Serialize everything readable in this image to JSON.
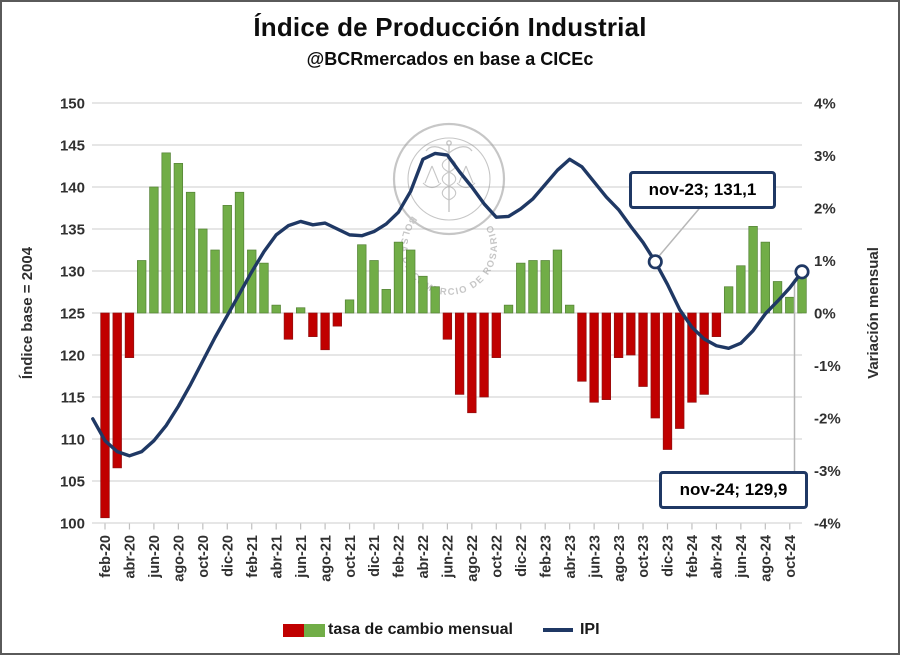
{
  "header": {
    "title": "Índice de Producción Industrial",
    "subtitle": "@BCRmercados en base a CICEc"
  },
  "chart_data": {
    "type": "combo-bar-line",
    "title": "Índice de Producción Industrial",
    "subtitle": "@BCRmercados en base a CICEc",
    "watermark": "BOLSA DE COMERCIO DE ROSARIO",
    "left_axis": {
      "label": "Índice base = 2004",
      "min": 100,
      "max": 150,
      "step": 5,
      "tick_labels": [
        "150",
        "145",
        "140",
        "135",
        "130",
        "125",
        "120",
        "115",
        "110",
        "105",
        "100"
      ]
    },
    "right_axis": {
      "label": "Variación mensual",
      "min_pct": -4,
      "max_pct": 4,
      "step_pct": 1,
      "tick_labels": [
        "4%",
        "3%",
        "2%",
        "1%",
        "0%",
        "-1%",
        "-2%",
        "-3%",
        "-4%"
      ]
    },
    "x_tick_labels": [
      "feb-20",
      "abr-20",
      "jun-20",
      "ago-20",
      "oct-20",
      "dic-20",
      "feb-21",
      "abr-21",
      "jun-21",
      "ago-21",
      "oct-21",
      "dic-21",
      "feb-22",
      "abr-22",
      "jun-22",
      "ago-22",
      "oct-22",
      "dic-22",
      "feb-23",
      "abr-23",
      "jun-23",
      "ago-23",
      "oct-23",
      "dic-23",
      "feb-24",
      "abr-24",
      "jun-24",
      "ago-24",
      "oct-24"
    ],
    "bar_months": [
      "feb-20",
      "mar-20",
      "abr-20",
      "may-20",
      "jun-20",
      "jul-20",
      "ago-20",
      "sep-20",
      "oct-20",
      "nov-20",
      "dic-20",
      "ene-21",
      "feb-21",
      "mar-21",
      "abr-21",
      "may-21",
      "jun-21",
      "jul-21",
      "ago-21",
      "sep-21",
      "oct-21",
      "nov-21",
      "dic-21",
      "ene-22",
      "feb-22",
      "mar-22",
      "abr-22",
      "may-22",
      "jun-22",
      "jul-22",
      "ago-22",
      "sep-22",
      "oct-22",
      "nov-22",
      "dic-22",
      "ene-23",
      "feb-23",
      "mar-23",
      "abr-23",
      "may-23",
      "jun-23",
      "jul-23",
      "ago-23",
      "sep-23",
      "oct-23",
      "nov-23",
      "dic-23",
      "ene-24",
      "feb-24",
      "mar-24",
      "abr-24",
      "may-24",
      "jun-24",
      "jul-24",
      "ago-24",
      "sep-24",
      "oct-24",
      "nov-24"
    ],
    "line_months": [
      "ene-20",
      "feb-20",
      "mar-20",
      "abr-20",
      "may-20",
      "jun-20",
      "jul-20",
      "ago-20",
      "sep-20",
      "oct-20",
      "nov-20",
      "dic-20",
      "ene-21",
      "feb-21",
      "mar-21",
      "abr-21",
      "may-21",
      "jun-21",
      "jul-21",
      "ago-21",
      "sep-21",
      "oct-21",
      "nov-21",
      "dic-21",
      "ene-22",
      "feb-22",
      "mar-22",
      "abr-22",
      "may-22",
      "jun-22",
      "jul-22",
      "ago-22",
      "sep-22",
      "oct-22",
      "nov-22",
      "dic-22",
      "ene-23",
      "feb-23",
      "mar-23",
      "abr-23",
      "may-23",
      "jun-23",
      "jul-23",
      "ago-23",
      "sep-23",
      "oct-23",
      "nov-23",
      "dic-23",
      "ene-24",
      "feb-24",
      "mar-24",
      "abr-24",
      "may-24",
      "jun-24",
      "jul-24",
      "ago-24",
      "sep-24",
      "oct-24",
      "nov-24"
    ],
    "series": [
      {
        "name": "tasa de cambio mensual",
        "type": "bar",
        "axis": "right",
        "unit": "% m/m",
        "values": [
          -3.9,
          -2.95,
          -0.85,
          1.0,
          2.4,
          3.05,
          2.85,
          2.3,
          1.6,
          1.2,
          2.05,
          2.3,
          1.2,
          0.95,
          0.15,
          -0.5,
          0.1,
          -0.45,
          -0.7,
          -0.25,
          0.25,
          1.3,
          1.0,
          0.45,
          1.35,
          1.2,
          0.7,
          0.5,
          -0.5,
          -1.55,
          -1.9,
          -1.6,
          -0.85,
          0.15,
          0.95,
          1.0,
          1.0,
          1.2,
          0.15,
          -1.3,
          -1.7,
          -1.65,
          -0.85,
          -0.8,
          -1.4,
          -2.0,
          -2.6,
          -2.2,
          -1.7,
          -1.55,
          -0.45,
          0.5,
          0.9,
          1.65,
          1.35,
          0.6,
          0.3,
          0.75
        ]
      },
      {
        "name": "IPI",
        "type": "line",
        "axis": "left",
        "unit": "index (2004=100)",
        "values": [
          112.4,
          109.8,
          108.5,
          108.0,
          108.5,
          109.8,
          111.6,
          113.9,
          116.5,
          119.3,
          122.1,
          124.7,
          127.3,
          129.9,
          132.3,
          134.3,
          135.4,
          135.9,
          135.5,
          135.7,
          135.0,
          134.3,
          134.2,
          134.7,
          135.6,
          137.0,
          139.5,
          143.3,
          144.0,
          143.8,
          141.8,
          140.0,
          138.0,
          136.4,
          136.5,
          137.4,
          138.6,
          140.3,
          142.0,
          143.3,
          142.4,
          140.6,
          138.8,
          137.3,
          135.3,
          133.4,
          131.1,
          128.4,
          125.4,
          123.3,
          121.9,
          121.1,
          120.8,
          121.4,
          122.9,
          124.9,
          126.4,
          128.0,
          129.9
        ]
      }
    ],
    "annotations": [
      {
        "label": "nov-23; 131,1",
        "month": "nov-23",
        "value": 131.1
      },
      {
        "label": "nov-24; 129,9",
        "month": "nov-24",
        "value": 129.9
      }
    ],
    "legend": [
      {
        "label": "tasa de cambio mensual",
        "swatch_colors": [
          "#c00000",
          "#71ad47"
        ]
      },
      {
        "label": "IPI",
        "line_color": "#1f3864"
      }
    ],
    "colors": {
      "bar_positive": "#71ad47",
      "bar_positive_edge": "#538135",
      "bar_negative": "#c00000",
      "bar_negative_edge": "#8f1010",
      "line": "#1f3864",
      "marker_fill": "#ffffff",
      "gridline": "#d8d8d8",
      "axis_tick": "#bfbfbf",
      "tick_text": "#303030",
      "annotation_border": "#1f3864",
      "leader": "#b7b7b7",
      "watermark": "#8f8f8f"
    },
    "grid": "horizontal-on",
    "legend_position": "bottom"
  }
}
